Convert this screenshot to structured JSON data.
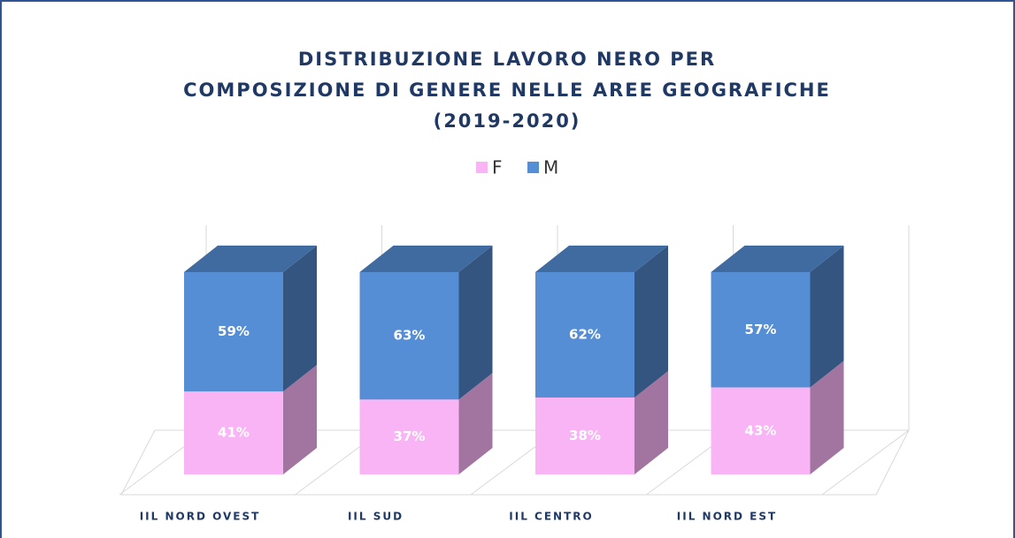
{
  "chart_data": {
    "type": "stacked_bar_3d",
    "title": [
      "DISTRIBUZIONE LAVORO NERO PER",
      "COMPOSIZIONE DI GENERE NELLE AREE GEOGRAFICHE",
      "(2019-2020)"
    ],
    "categories": [
      "IIL NORD OVEST",
      "IIL SUD",
      "IIL CENTRO",
      "IIL NORD EST"
    ],
    "series": [
      {
        "name": "F",
        "color": "#f9b4f6",
        "values": [
          41,
          37,
          38,
          43
        ],
        "value_labels": [
          "41%",
          "37%",
          "38%",
          "43%"
        ]
      },
      {
        "name": "M",
        "color": "#558ed5",
        "values": [
          59,
          63,
          62,
          57
        ],
        "value_labels": [
          "59%",
          "63%",
          "62%",
          "57%"
        ]
      }
    ],
    "legend": "top"
  }
}
